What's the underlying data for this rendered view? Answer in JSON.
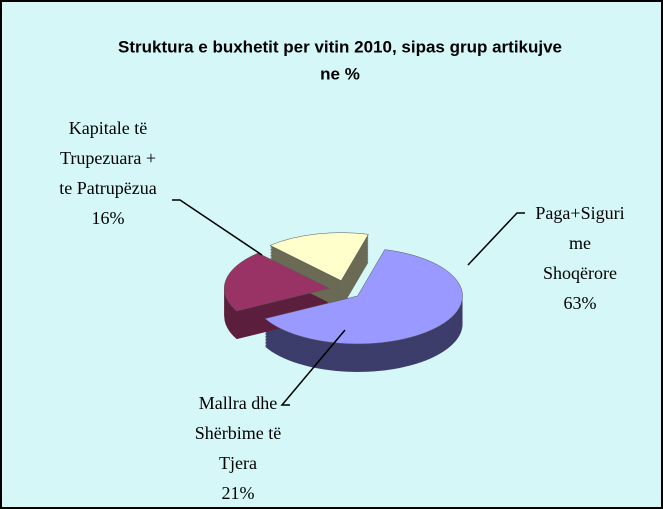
{
  "chart_data": {
    "type": "pie3d",
    "title": [
      "Struktura e buxhetit per vitin 2010, sipas grup artikujve",
      "ne %"
    ],
    "categories": [
      [
        "Paga+Siguri",
        "me",
        "Shoqërore"
      ],
      [
        "Mallra dhe",
        "Shërbime të",
        "Tjera"
      ],
      [
        "Kapitale të",
        "Trupezuara +",
        "te Patrupëzua"
      ]
    ],
    "values": [
      63,
      21,
      16
    ],
    "value_labels": [
      "63%",
      "21%",
      "16%"
    ],
    "colors": [
      "#9999ff",
      "#993366",
      "#ffffcc"
    ],
    "side_colors": [
      "#3d3d6b",
      "#5c1f3d",
      "#6b6b55"
    ]
  }
}
